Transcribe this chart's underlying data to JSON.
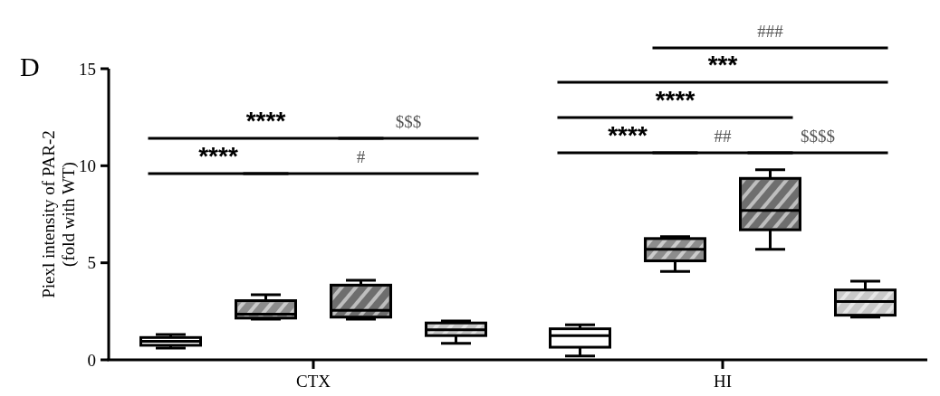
{
  "chart_data": {
    "type": "box",
    "ylabel": "Piexl intensity of PAR-2\n(fold with WT)",
    "categories": [
      "CTX",
      "HI"
    ],
    "ylim": [
      0,
      15
    ],
    "yticks": [
      0,
      5,
      10,
      15
    ],
    "grid": false,
    "legend": false,
    "series": [
      {
        "color": "#ffffff",
        "boxes": [
          {
            "low": 0.6,
            "q1": 0.75,
            "median": 0.95,
            "q3": 1.15,
            "high": 1.3
          },
          {
            "low": 0.2,
            "q1": 0.65,
            "median": 1.25,
            "q3": 1.6,
            "high": 1.8
          }
        ]
      },
      {
        "color": "#8c8c8c",
        "boxes": [
          {
            "low": 2.1,
            "q1": 2.15,
            "median": 2.35,
            "q3": 3.05,
            "high": 3.35
          },
          {
            "low": 4.55,
            "q1": 5.1,
            "median": 5.7,
            "q3": 6.25,
            "high": 6.35
          }
        ]
      },
      {
        "color": "#6e6e6e",
        "boxes": [
          {
            "low": 2.1,
            "q1": 2.2,
            "median": 2.55,
            "q3": 3.85,
            "high": 4.1
          },
          {
            "low": 5.7,
            "q1": 6.7,
            "median": 7.7,
            "q3": 9.35,
            "high": 9.8
          }
        ]
      },
      {
        "color": "#c8c8c8",
        "boxes": [
          {
            "low": 0.85,
            "q1": 1.25,
            "median": 1.55,
            "q3": 1.9,
            "high": 2.0
          },
          {
            "low": 2.2,
            "q1": 2.3,
            "median": 3.0,
            "q3": 3.6,
            "high": 4.05
          }
        ]
      }
    ],
    "annotations": [
      "D",
      "****",
      "#",
      "****",
      "$$$",
      "****",
      "##",
      "$$$$",
      "****",
      "***",
      "###"
    ]
  }
}
